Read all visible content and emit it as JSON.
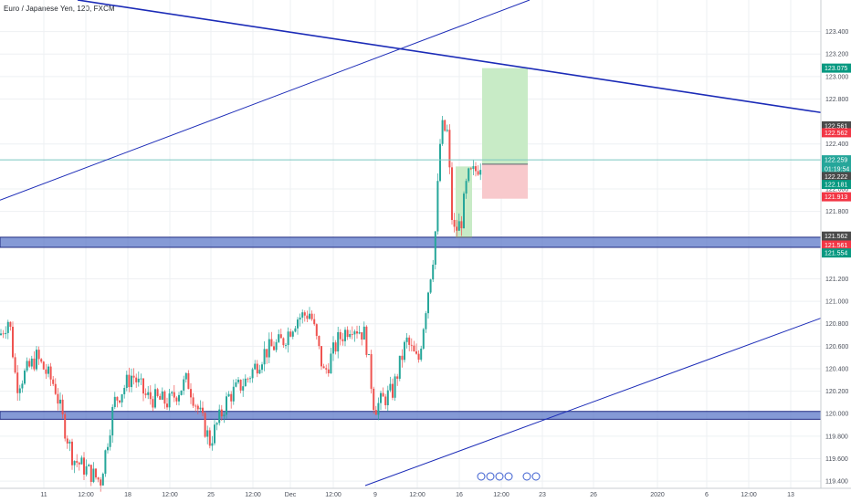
{
  "header": {
    "title": "Euro / Japanese Yen, 120, FXCM"
  },
  "colors": {
    "up": "#26a69a",
    "down": "#ef5350",
    "trend_line": "#1b2bb7",
    "support_zone": "#5c78c8",
    "profit_zone": "#c8ebc6",
    "loss_zone": "#f8c9cc",
    "price_line": "#7ac6c0"
  },
  "chart_data": {
    "type": "candlestick",
    "symbol": "Euro / Japanese Yen, 120, FXCM",
    "ylim": [
      119.36,
      123.6
    ],
    "y_ticks": [
      "123.400",
      "123.200",
      "123.000",
      "122.800",
      "122.400",
      "122.000",
      "121.800",
      "121.200",
      "121.000",
      "120.800",
      "120.600",
      "120.400",
      "120.200",
      "120.000",
      "119.800",
      "119.600",
      "119.400"
    ],
    "x_ticks": [
      "11",
      "12:00",
      "18",
      "12:00",
      "25",
      "12:00",
      "Dec",
      "12:00",
      "9",
      "12:00",
      "16",
      "12:00",
      "23",
      "26",
      "2020",
      "6",
      "12:00",
      "13"
    ],
    "price_labels": [
      {
        "text": "123.075",
        "color": "#089981"
      },
      {
        "text": "122.561",
        "color": "#4a4a4a"
      },
      {
        "text": "122.562",
        "color": "#f23645"
      },
      {
        "text": "122.259",
        "color": "#26a69a"
      },
      {
        "text": "01:19:54",
        "color": "#26a69a"
      },
      {
        "text": "122.222",
        "color": "#4a4a4a"
      },
      {
        "text": "122.181",
        "color": "#089981"
      },
      {
        "text": "121.913",
        "color": "#f23645"
      },
      {
        "text": "121.562",
        "color": "#4a4a4a"
      },
      {
        "text": "121.561",
        "color": "#f23645"
      },
      {
        "text": "121.554",
        "color": "#089981"
      }
    ],
    "annotations": {
      "long_position": {
        "entry": 122.22,
        "target": 123.075,
        "stop": 121.913
      },
      "support_zones": [
        [
          121.48,
          121.57
        ],
        [
          119.95,
          120.02
        ]
      ],
      "current_price": 122.259
    }
  }
}
